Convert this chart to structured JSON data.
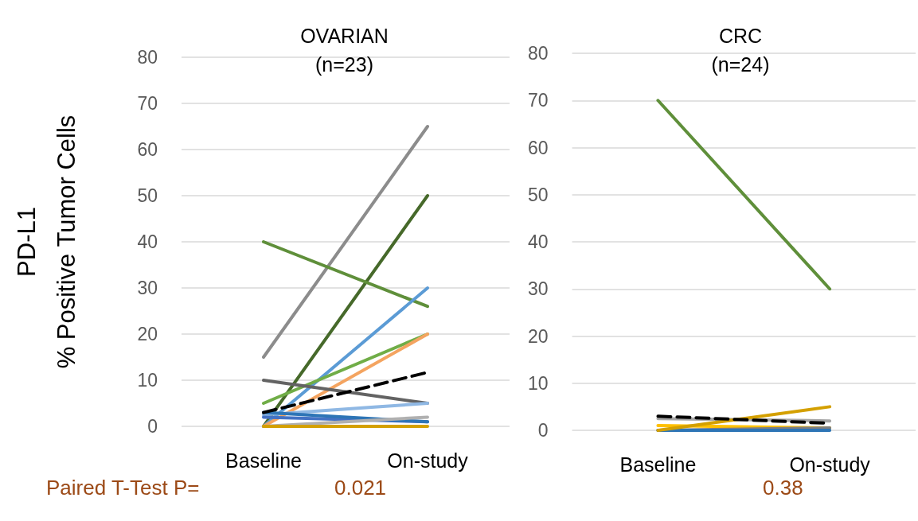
{
  "chart_data": [
    {
      "type": "line",
      "title": "OVARIAN\n(n=23)",
      "ylabel": "PD-L1\n% Positive Tumor Cells",
      "categories": [
        "Baseline",
        "On-study"
      ],
      "ylim": [
        0,
        80
      ],
      "yticks": [
        0,
        10,
        20,
        30,
        40,
        50,
        60,
        70,
        80
      ],
      "grid": "y",
      "marker": "none",
      "annotations": [
        "Paired T-Test P=",
        "0.021"
      ],
      "series": [
        {
          "color": "#8c8c8c",
          "values": [
            15,
            65
          ]
        },
        {
          "color": "#46692a",
          "values": [
            0,
            50
          ]
        },
        {
          "color": "#5f8f3a",
          "values": [
            40,
            26
          ]
        },
        {
          "color": "#5b9bd5",
          "values": [
            0,
            30
          ]
        },
        {
          "color": "#70ad47",
          "values": [
            5,
            20
          ]
        },
        {
          "color": "#f4a460",
          "values": [
            0,
            20
          ]
        },
        {
          "color": "#000000",
          "values": [
            3,
            11.7
          ],
          "line_style": "dashed"
        },
        {
          "color": "#636363",
          "values": [
            10,
            5
          ]
        },
        {
          "color": "#8fb8e4",
          "values": [
            2.5,
            5
          ]
        },
        {
          "color": "#4472c4",
          "values": [
            2,
            1
          ]
        },
        {
          "color": "#2e75b6",
          "values": [
            3,
            1
          ]
        },
        {
          "color": "#b0b0b0",
          "values": [
            0,
            2
          ]
        },
        {
          "color": "#d4a000",
          "values": [
            0,
            0
          ]
        }
      ]
    },
    {
      "type": "line",
      "title": "CRC\n(n=24)",
      "categories": [
        "Baseline",
        "On-study"
      ],
      "ylim": [
        0,
        80
      ],
      "yticks": [
        0,
        10,
        20,
        30,
        40,
        50,
        60,
        70,
        80
      ],
      "grid": "y",
      "marker": "none",
      "annotations": [
        "0.38"
      ],
      "series": [
        {
          "color": "#5f8f3a",
          "values": [
            70,
            30
          ]
        },
        {
          "color": "#a6a6a6",
          "values": [
            2.5,
            2
          ]
        },
        {
          "color": "#ffc000",
          "values": [
            1,
            0.5
          ]
        },
        {
          "color": "#7f7f7f",
          "values": [
            0,
            0.5
          ]
        },
        {
          "color": "#2e75b6",
          "values": [
            0,
            0
          ]
        },
        {
          "color": "#d4a000",
          "values": [
            0,
            5
          ]
        },
        {
          "color": "#000000",
          "values": [
            3,
            1.5
          ],
          "line_style": "dashed"
        }
      ]
    }
  ]
}
